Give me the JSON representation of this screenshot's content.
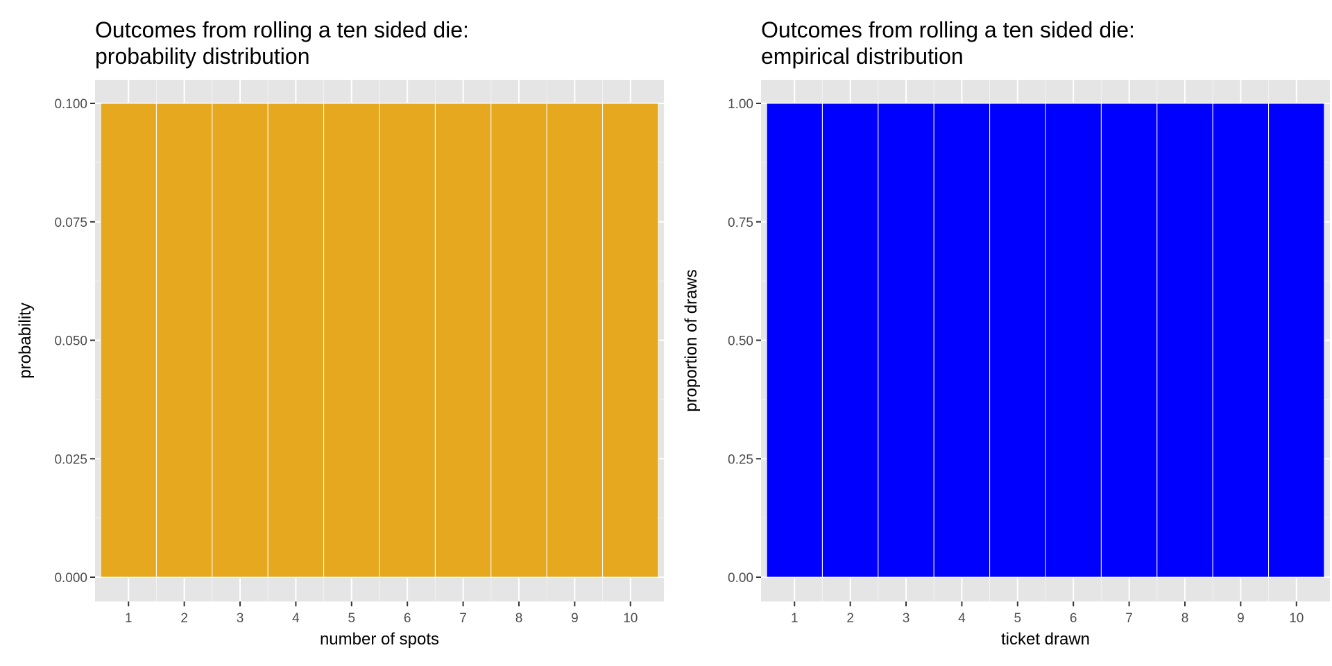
{
  "chart_data": [
    {
      "type": "bar",
      "title_lines": [
        "Outcomes from rolling a ten sided die:",
        " probability distribution"
      ],
      "xlabel": "number of spots",
      "ylabel": "probability",
      "categories": [
        "1",
        "2",
        "3",
        "4",
        "5",
        "6",
        "7",
        "8",
        "9",
        "10"
      ],
      "values": [
        0.1,
        0.1,
        0.1,
        0.1,
        0.1,
        0.1,
        0.1,
        0.1,
        0.1,
        0.1
      ],
      "ylim": [
        0,
        0.1
      ],
      "yticks": [
        0.0,
        0.025,
        0.05,
        0.075,
        0.1
      ],
      "ytick_labels": [
        "0.000",
        "0.025",
        "0.050",
        "0.075",
        "0.100"
      ],
      "bar_color": "#E6A81E",
      "grid": true
    },
    {
      "type": "bar",
      "title_lines": [
        "Outcomes from rolling a ten sided die:",
        " empirical distribution"
      ],
      "xlabel": "ticket drawn",
      "ylabel": "proportion of draws",
      "categories": [
        "1",
        "2",
        "3",
        "4",
        "5",
        "6",
        "7",
        "8",
        "9",
        "10"
      ],
      "values": [
        1,
        1,
        1,
        1,
        1,
        1,
        1,
        1,
        1,
        1
      ],
      "ylim": [
        0,
        1
      ],
      "yticks": [
        0.0,
        0.25,
        0.5,
        0.75,
        1.0
      ],
      "ytick_labels": [
        "0.00",
        "0.25",
        "0.50",
        "0.75",
        "1.00"
      ],
      "bar_color": "#0000FF",
      "grid": true
    }
  ]
}
